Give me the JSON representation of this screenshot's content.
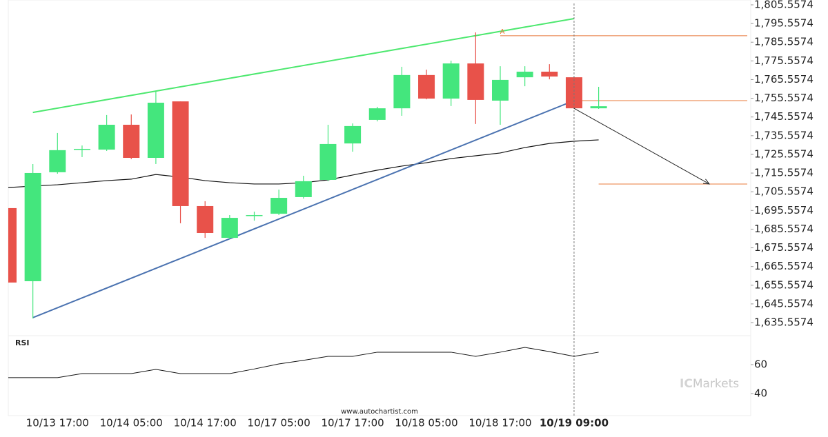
{
  "chart_data": {
    "type": "candlestick",
    "categories": [
      null,
      null,
      "10/13 17:00",
      null,
      null,
      "10/14 05:00",
      null,
      null,
      "10/14 17:00",
      null,
      null,
      "10/17 05:00",
      null,
      null,
      "10/17 17:00",
      null,
      null,
      "10/18 05:00",
      null,
      null,
      "10/18 17:00",
      null,
      null,
      "10/19 09:00",
      null
    ],
    "open": [
      1696.8,
      1657.7,
      1716.0,
      1728.1,
      1728.1,
      1741.4,
      1723.7,
      1753.9,
      1697.9,
      1680.9,
      1693.1,
      1693.8,
      1702.7,
      1711.9,
      1731.4,
      1744.0,
      1750.2,
      1768.0,
      1755.4,
      1774.2,
      1754.3,
      1766.8,
      1769.8,
      1766.8,
      1750.2
    ],
    "high": [
      1696.8,
      1720.4,
      1737.0,
      1730.3,
      1746.6,
      1746.9,
      1759.1,
      1753.9,
      1700.5,
      1693.1,
      1694.9,
      1706.7,
      1714.1,
      1741.4,
      1742.1,
      1751.0,
      1772.4,
      1770.9,
      1775.7,
      1790.8,
      1772.7,
      1772.7,
      1773.8,
      1766.8,
      1761.7
    ],
    "low": [
      1657.0,
      1637.8,
      1715.2,
      1724.1,
      1727.4,
      1723.0,
      1720.4,
      1688.7,
      1680.9,
      1680.2,
      1690.1,
      1693.1,
      1701.9,
      1711.2,
      1727.0,
      1743.2,
      1746.2,
      1755.0,
      1751.4,
      1741.8,
      1741.4,
      1762.0,
      1765.7,
      1749.9,
      1749.9
    ],
    "close": [
      1657.0,
      1715.6,
      1727.8,
      1728.5,
      1741.4,
      1723.7,
      1753.2,
      1697.9,
      1683.5,
      1691.6,
      1693.1,
      1702.3,
      1711.2,
      1731.1,
      1740.7,
      1750.2,
      1768.0,
      1755.4,
      1774.2,
      1754.7,
      1765.4,
      1769.8,
      1767.2,
      1750.2,
      1751.3
    ],
    "up_color": "#44e67d",
    "down_color": "#e8524a",
    "ylim": [
      1628.56,
      1808.14
    ],
    "yticks": [
      {
        "value": 1635.5574,
        "label": "1,635.5574"
      },
      {
        "value": 1645.5574,
        "label": "1,645.5574"
      },
      {
        "value": 1655.5574,
        "label": "1,655.5574"
      },
      {
        "value": 1665.5574,
        "label": "1,665.5574"
      },
      {
        "value": 1675.5574,
        "label": "1,675.5574"
      },
      {
        "value": 1685.5574,
        "label": "1,685.5574"
      },
      {
        "value": 1695.5574,
        "label": "1,695.5574"
      },
      {
        "value": 1705.5574,
        "label": "1,705.5574"
      },
      {
        "value": 1715.5574,
        "label": "1,715.5574"
      },
      {
        "value": 1725.5574,
        "label": "1,725.5574"
      },
      {
        "value": 1735.5574,
        "label": "1,735.5574"
      },
      {
        "value": 1745.5574,
        "label": "1,745.5574"
      },
      {
        "value": 1755.5574,
        "label": "1,755.5574"
      },
      {
        "value": 1765.5574,
        "label": "1,765.5574"
      },
      {
        "value": 1775.5574,
        "label": "1,775.5574"
      },
      {
        "value": 1785.5574,
        "label": "1,785.5574"
      },
      {
        "value": 1795.5574,
        "label": "1,795.5574"
      },
      {
        "value": 1805.5574,
        "label": "1,805.5574"
      }
    ],
    "moving_average": {
      "color": "#111111",
      "values": [
        1707.8,
        1708.6,
        1709.3,
        1710.4,
        1711.5,
        1712.3,
        1714.8,
        1713.4,
        1711.5,
        1710.4,
        1709.7,
        1709.7,
        1710.4,
        1711.9,
        1714.5,
        1717.1,
        1719.3,
        1721.1,
        1723.3,
        1724.8,
        1726.3,
        1729.2,
        1731.4,
        1732.6,
        1733.3
      ]
    },
    "resistance_line": {
      "color": "#4de86f",
      "values": [
        1748.0,
        1798.2
      ]
    },
    "support_line": {
      "color": "#4a72b0",
      "values": [
        1638.2,
        1754.3
      ]
    },
    "levels": {
      "color": "#e8783a",
      "values": [
        1789.0,
        1754.3,
        1709.7
      ]
    },
    "forecast_arrow": {
      "color": "#222222",
      "values": [
        1750.2,
        1709.7
      ]
    },
    "pattern_label": "A",
    "rsi": {
      "label": "RSI",
      "color": "#111111",
      "values": [
        51.0,
        51.0,
        51.0,
        53.8,
        53.8,
        53.8,
        56.7,
        53.8,
        53.8,
        53.8,
        57.0,
        60.5,
        63.0,
        65.7,
        65.7,
        68.6,
        68.6,
        68.6,
        68.6,
        65.7,
        68.6,
        71.9,
        69.0,
        65.7,
        68.6
      ],
      "ylim": [
        26.2,
        80
      ],
      "yticks": [
        40,
        60
      ]
    },
    "source": "www.autochartist.com",
    "watermark": [
      "IC",
      "Markets"
    ]
  }
}
